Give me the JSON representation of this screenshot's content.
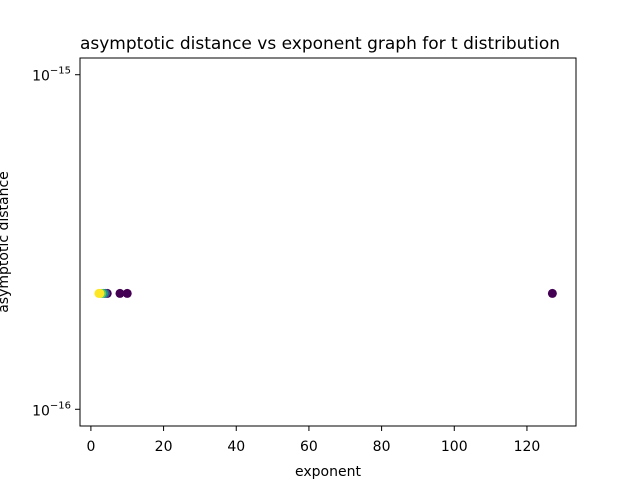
{
  "chart_data": {
    "type": "scatter",
    "title": "asymptotic distance vs exponent graph for t distribution",
    "xlabel": "exponent",
    "ylabel": "asymptotic distance",
    "xlim": [
      -3,
      133.5
    ],
    "ylim_log10": [
      -16.05,
      -14.95
    ],
    "yscale": "log",
    "grid": false,
    "x_ticks": [
      0,
      20,
      40,
      60,
      80,
      100,
      120
    ],
    "y_ticks": [
      {
        "value": 1e-15,
        "base": "10",
        "exponent": "−15"
      },
      {
        "value": 1e-16,
        "base": "10",
        "exponent": "−16"
      }
    ],
    "colormap": [
      "#440154",
      "#31688e",
      "#35b779",
      "#fde725"
    ],
    "points": [
      {
        "x": 127.0,
        "y": 2.22e-16,
        "color": "#440154"
      },
      {
        "x": 10.0,
        "y": 2.22e-16,
        "color": "#440154"
      },
      {
        "x": 8.0,
        "y": 2.22e-16,
        "color": "#440154"
      },
      {
        "x": 4.5,
        "y": 2.22e-16,
        "color": "#440154"
      },
      {
        "x": 4.0,
        "y": 2.22e-16,
        "color": "#3b528b"
      },
      {
        "x": 3.5,
        "y": 2.22e-16,
        "color": "#21918c"
      },
      {
        "x": 3.0,
        "y": 2.22e-16,
        "color": "#5ec962"
      },
      {
        "x": 2.5,
        "y": 2.22e-16,
        "color": "#fde725"
      },
      {
        "x": 2.2,
        "y": 2.22e-16,
        "color": "#fde725"
      }
    ]
  }
}
